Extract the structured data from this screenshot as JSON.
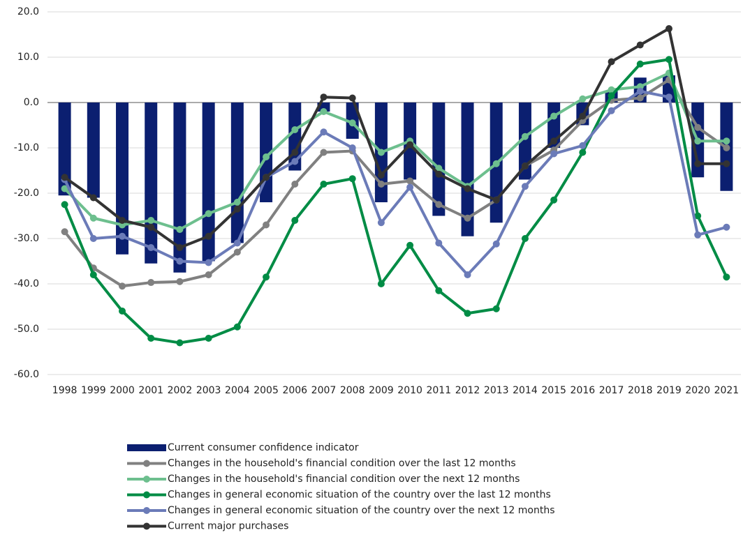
{
  "chart_data": {
    "type": "combo",
    "categories": [
      "1998",
      "1999",
      "2000",
      "2001",
      "2002",
      "2003",
      "2004",
      "2005",
      "2006",
      "2007",
      "2008",
      "2009",
      "2010",
      "2011",
      "2012",
      "2013",
      "2014",
      "2015",
      "2016",
      "2017",
      "2018",
      "2019",
      "2020",
      "2021"
    ],
    "series": [
      {
        "name": "Current consumer confidence indicator",
        "type": "bar",
        "color": "#0b1f70",
        "values": [
          -20.5,
          -21,
          -33.5,
          -35.5,
          -37.5,
          -35,
          -31,
          -22,
          -15,
          -2,
          -8,
          -22,
          -17,
          -25,
          -29.5,
          -26.5,
          -17,
          -10,
          -5,
          2.5,
          5.5,
          6,
          -16.5,
          -19.5
        ]
      },
      {
        "name": "Changes in the household's financial condition over the last 12 months",
        "type": "line",
        "color": "#808080",
        "values": [
          -28.5,
          -36.5,
          -40.5,
          -39.7,
          -39.5,
          -38,
          -33,
          -27,
          -18,
          -11,
          -10.7,
          -18,
          -17.3,
          -22.5,
          -25.5,
          -21.5,
          -14,
          -10.5,
          -4,
          0.5,
          1,
          5,
          -5.5,
          -10
        ]
      },
      {
        "name": "Changes in the household's financial condition over the next 12 months",
        "type": "line",
        "color": "#6dbf8e",
        "values": [
          -19,
          -25.5,
          -27,
          -26,
          -28,
          -24.5,
          -22,
          -12,
          -6,
          -2,
          -4.5,
          -11,
          -8.5,
          -14.5,
          -18.5,
          -13.5,
          -7.5,
          -3,
          0.8,
          2.8,
          3.5,
          6.5,
          -8.5,
          -8.5
        ]
      },
      {
        "name": "Changes in general economic situation of the country over the last 12 months",
        "type": "line",
        "color": "#008c45",
        "values": [
          -22.5,
          -38,
          -46,
          -52,
          -53,
          -52,
          -49.5,
          -38.5,
          -26,
          -18,
          -16.8,
          -40,
          -31.5,
          -41.5,
          -46.5,
          -45.5,
          -30,
          -21.5,
          -11,
          1.5,
          8.5,
          9.5,
          -25,
          -38.5
        ]
      },
      {
        "name": "Changes in general economic situation of the country over the next 12 months",
        "type": "line",
        "color": "#6b7bb8",
        "values": [
          -17,
          -30,
          -29.5,
          -32,
          -35,
          -35.3,
          -31,
          -16.5,
          -13,
          -6.5,
          -10,
          -26.5,
          -18.7,
          -31,
          -38,
          -31.2,
          -18.5,
          -11.3,
          -9.5,
          -1.8,
          2.5,
          1.2,
          -29.2,
          -27.5
        ]
      },
      {
        "name": "Current major purchases",
        "type": "line",
        "color": "#333333",
        "values": [
          -16.5,
          -21,
          -26,
          -27.5,
          -32,
          -29.5,
          -23.5,
          -16.5,
          -11,
          1.2,
          1,
          -16,
          -9.3,
          -15.8,
          -19,
          -21.5,
          -14,
          -8.5,
          -3,
          9,
          12.7,
          16.3,
          -13.5,
          -13.5
        ]
      }
    ],
    "ylim": [
      -60,
      20
    ],
    "yticks": [
      {
        "value": -60,
        "label": "-60.0"
      },
      {
        "value": -50,
        "label": "-50.0"
      },
      {
        "value": -40,
        "label": "-40.0"
      },
      {
        "value": -30,
        "label": "-30.0"
      },
      {
        "value": -20,
        "label": "-20.0"
      },
      {
        "value": -10,
        "label": "-10.0"
      },
      {
        "value": 0,
        "label": "0.0"
      },
      {
        "value": 10,
        "label": "10.0"
      },
      {
        "value": 20,
        "label": "20.0"
      }
    ],
    "grid": true,
    "legend": "bottom"
  }
}
